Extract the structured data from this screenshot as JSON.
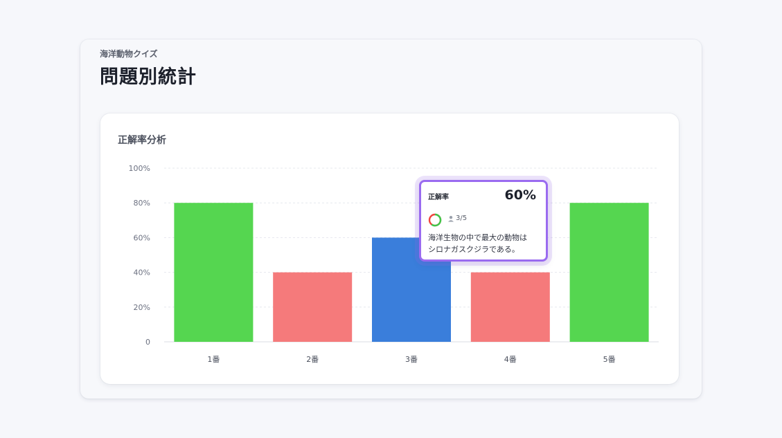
{
  "header": {
    "subtitle": "海洋動物クイズ",
    "title": "問題別統計"
  },
  "card": {
    "title": "正解率分析"
  },
  "tooltip": {
    "label": "正解率",
    "value": "60%",
    "count": "3/5",
    "line1": "海洋生物の中で最大の動物は",
    "line2": "シロナガスクジラである。"
  },
  "colors": {
    "correct_high": "#55d650",
    "correct_low": "#f57a7b",
    "selected": "#3a7edb",
    "tooltip_border": "#9a6bf0"
  },
  "chart_data": {
    "type": "bar",
    "categories": [
      "1番",
      "2番",
      "3番",
      "4番",
      "5番"
    ],
    "values": [
      80,
      40,
      60,
      40,
      80
    ],
    "yticks": [
      "0",
      "20%",
      "40%",
      "60%",
      "80%",
      "100%"
    ],
    "ylim": [
      0,
      100
    ],
    "grid": true,
    "selected_index": 2
  }
}
